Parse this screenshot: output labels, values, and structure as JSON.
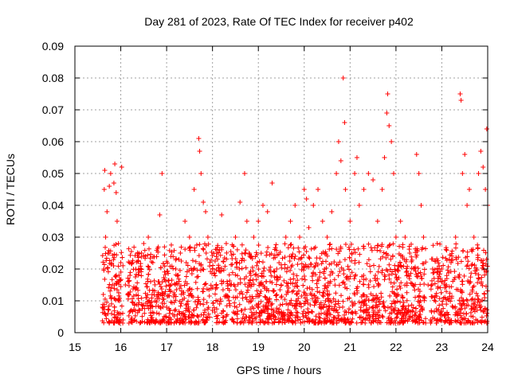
{
  "chart_data": {
    "type": "scatter",
    "title": "Day 281 of 2023, Rate Of TEC Index for receiver p402",
    "xlabel": "GPS time / hours",
    "ylabel": "ROTI / TECUs",
    "xlim": [
      15,
      24
    ],
    "ylim": [
      0,
      0.09
    ],
    "xticks": [
      15,
      16,
      17,
      18,
      19,
      20,
      21,
      22,
      23,
      24
    ],
    "yticks": [
      0,
      0.01,
      0.02,
      0.03,
      0.04,
      0.05,
      0.06,
      0.07,
      0.08,
      0.09
    ],
    "xtick_labels": [
      "15",
      "16",
      "17",
      "18",
      "19",
      "20",
      "21",
      "22",
      "23",
      "24"
    ],
    "ytick_labels": [
      "0",
      "0.01",
      "0.02",
      "0.03",
      "0.04",
      "0.05",
      "0.06",
      "0.07",
      "0.08",
      "0.09"
    ],
    "grid": true,
    "marker": "+",
    "marker_color": "#ff0000",
    "series": [
      {
        "name": "ROTI",
        "points": [
          [
            15.6,
            0.008
          ],
          [
            15.62,
            0.012
          ],
          [
            15.63,
            0.02
          ],
          [
            15.64,
            0.045
          ],
          [
            15.65,
            0.051
          ],
          [
            15.67,
            0.03
          ],
          [
            15.7,
            0.038
          ],
          [
            15.72,
            0.025
          ],
          [
            15.75,
            0.046
          ],
          [
            15.78,
            0.05
          ],
          [
            15.8,
            0.006
          ],
          [
            15.82,
            0.015
          ],
          [
            15.85,
            0.047
          ],
          [
            15.87,
            0.053
          ],
          [
            15.9,
            0.044
          ],
          [
            15.92,
            0.035
          ],
          [
            15.95,
            0.028
          ],
          [
            15.97,
            0.01
          ],
          [
            16.0,
            0.022
          ],
          [
            16.02,
            0.052
          ],
          [
            16.05,
            0.004
          ],
          [
            16.1,
            0.015
          ],
          [
            16.15,
            0.012
          ],
          [
            16.2,
            0.018
          ],
          [
            16.25,
            0.022
          ],
          [
            16.3,
            0.009
          ],
          [
            16.35,
            0.014
          ],
          [
            16.4,
            0.019
          ],
          [
            16.45,
            0.025
          ],
          [
            16.5,
            0.028
          ],
          [
            16.55,
            0.011
          ],
          [
            16.6,
            0.03
          ],
          [
            16.65,
            0.016
          ],
          [
            16.7,
            0.022
          ],
          [
            16.75,
            0.01
          ],
          [
            16.85,
            0.037
          ],
          [
            16.9,
            0.05
          ],
          [
            16.95,
            0.012
          ],
          [
            17.0,
            0.008
          ],
          [
            17.1,
            0.015
          ],
          [
            17.2,
            0.02
          ],
          [
            17.3,
            0.025
          ],
          [
            17.4,
            0.035
          ],
          [
            17.5,
            0.03
          ],
          [
            17.6,
            0.045
          ],
          [
            17.7,
            0.061
          ],
          [
            17.72,
            0.057
          ],
          [
            17.75,
            0.05
          ],
          [
            17.8,
            0.041
          ],
          [
            17.85,
            0.038
          ],
          [
            17.9,
            0.03
          ],
          [
            18.0,
            0.02
          ],
          [
            18.1,
            0.025
          ],
          [
            18.2,
            0.037
          ],
          [
            18.3,
            0.028
          ],
          [
            18.4,
            0.015
          ],
          [
            18.5,
            0.03
          ],
          [
            18.6,
            0.041
          ],
          [
            18.7,
            0.05
          ],
          [
            18.75,
            0.035
          ],
          [
            18.8,
            0.025
          ],
          [
            18.9,
            0.03
          ],
          [
            19.0,
            0.035
          ],
          [
            19.1,
            0.04
          ],
          [
            19.2,
            0.038
          ],
          [
            19.3,
            0.047
          ],
          [
            19.4,
            0.02
          ],
          [
            19.5,
            0.015
          ],
          [
            19.6,
            0.03
          ],
          [
            19.7,
            0.035
          ],
          [
            19.8,
            0.04
          ],
          [
            19.9,
            0.03
          ],
          [
            20.0,
            0.045
          ],
          [
            20.05,
            0.042
          ],
          [
            20.1,
            0.033
          ],
          [
            20.2,
            0.04
          ],
          [
            20.3,
            0.045
          ],
          [
            20.4,
            0.035
          ],
          [
            20.5,
            0.03
          ],
          [
            20.6,
            0.038
          ],
          [
            20.7,
            0.05
          ],
          [
            20.75,
            0.06
          ],
          [
            20.8,
            0.054
          ],
          [
            20.85,
            0.08
          ],
          [
            20.88,
            0.066
          ],
          [
            20.9,
            0.045
          ],
          [
            21.0,
            0.035
          ],
          [
            21.1,
            0.05
          ],
          [
            21.15,
            0.055
          ],
          [
            21.2,
            0.04
          ],
          [
            21.3,
            0.045
          ],
          [
            21.4,
            0.05
          ],
          [
            21.5,
            0.048
          ],
          [
            21.6,
            0.035
          ],
          [
            21.7,
            0.045
          ],
          [
            21.75,
            0.055
          ],
          [
            21.8,
            0.069
          ],
          [
            21.82,
            0.075
          ],
          [
            21.85,
            0.065
          ],
          [
            21.9,
            0.06
          ],
          [
            21.95,
            0.05
          ],
          [
            22.0,
            0.03
          ],
          [
            22.1,
            0.035
          ],
          [
            22.2,
            0.03
          ],
          [
            22.3,
            0.025
          ],
          [
            22.4,
            0.02
          ],
          [
            22.45,
            0.056
          ],
          [
            22.5,
            0.05
          ],
          [
            22.55,
            0.04
          ],
          [
            22.6,
            0.03
          ],
          [
            22.7,
            0.015
          ],
          [
            22.8,
            0.02
          ],
          [
            22.9,
            0.028
          ],
          [
            23.0,
            0.02
          ],
          [
            23.1,
            0.015
          ],
          [
            23.2,
            0.022
          ],
          [
            23.3,
            0.03
          ],
          [
            23.4,
            0.075
          ],
          [
            23.42,
            0.073
          ],
          [
            23.45,
            0.05
          ],
          [
            23.5,
            0.056
          ],
          [
            23.55,
            0.04
          ],
          [
            23.6,
            0.045
          ],
          [
            23.7,
            0.03
          ],
          [
            23.8,
            0.05
          ],
          [
            23.85,
            0.057
          ],
          [
            23.9,
            0.052
          ],
          [
            23.95,
            0.045
          ],
          [
            23.98,
            0.064
          ],
          [
            24.0,
            0.04
          ]
        ],
        "dense_band": {
          "x_ranges": [
            [
              15.6,
              16.05
            ],
            [
              16.15,
              22.65
            ],
            [
              22.75,
              24.0
            ]
          ],
          "y_low": 0.003,
          "y_high": 0.028
        }
      }
    ]
  }
}
